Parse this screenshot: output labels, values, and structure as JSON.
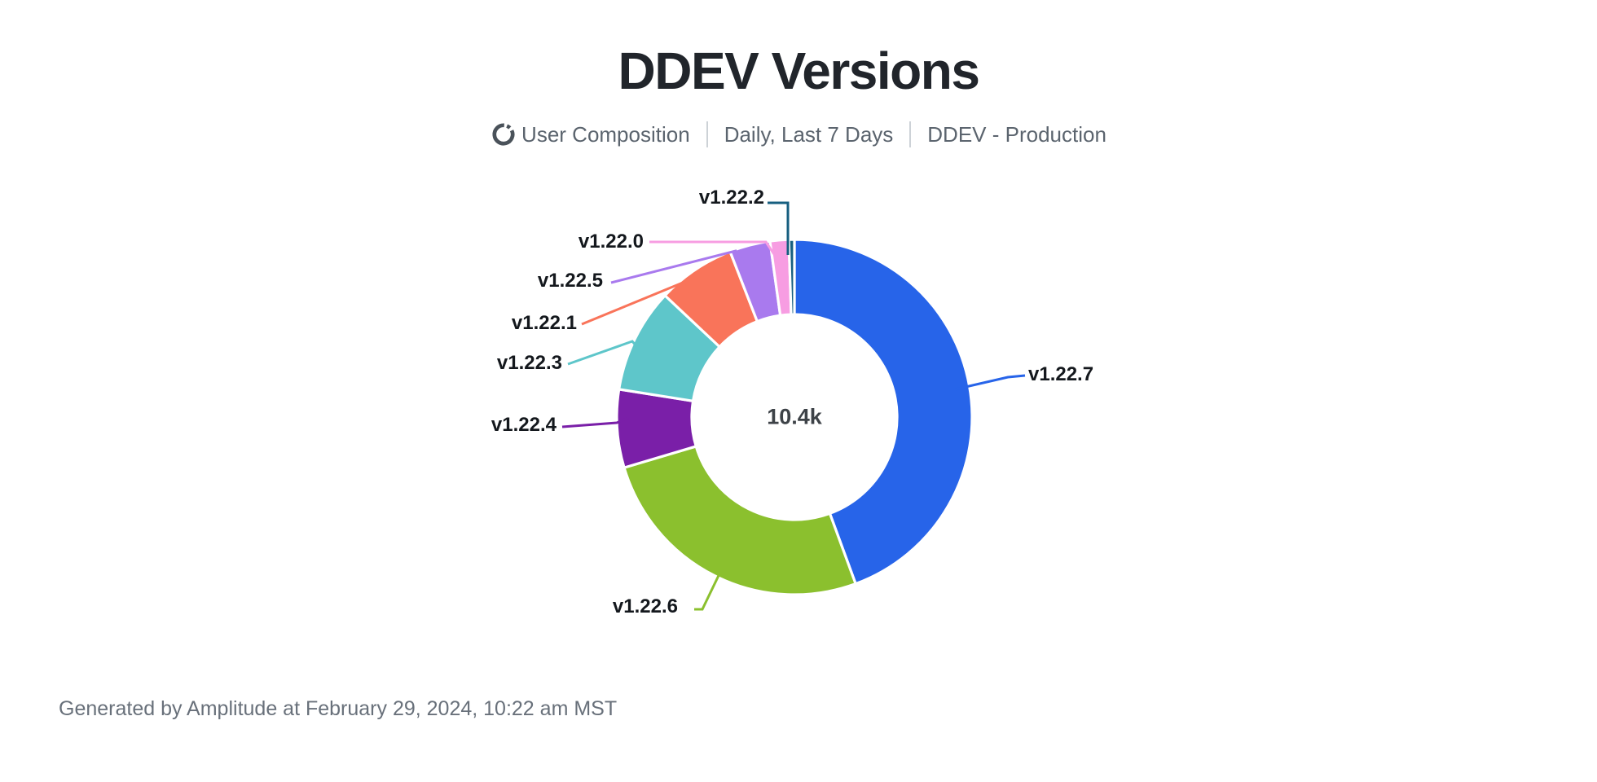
{
  "header": {
    "title": "DDEV Versions"
  },
  "subtitle": {
    "chart_type_label": "User Composition",
    "date_range": "Daily, Last 7 Days",
    "project": "DDEV - Production"
  },
  "footer": {
    "text": "Generated by Amplitude at February 29, 2024, 10:22 am MST"
  },
  "chart_data": {
    "type": "pie",
    "subtype": "donut",
    "title": "DDEV Versions",
    "center_label": "10.4k",
    "total_users_approx": 10400,
    "legend_position": "callout-labels",
    "start_angle_deg": 0,
    "direction": "clockwise",
    "slices": [
      {
        "label": "v1.22.7",
        "percent": 44.4,
        "color": "#2764E9"
      },
      {
        "label": "v1.22.6",
        "percent": 26.0,
        "color": "#8BC02E"
      },
      {
        "label": "v1.22.4",
        "percent": 7.1,
        "color": "#7A1FA8"
      },
      {
        "label": "v1.22.3",
        "percent": 9.5,
        "color": "#5EC6CA"
      },
      {
        "label": "v1.22.1",
        "percent": 7.1,
        "color": "#F9745A"
      },
      {
        "label": "v1.22.5",
        "percent": 3.7,
        "color": "#A97AEE"
      },
      {
        "label": "v1.22.0",
        "percent": 1.7,
        "color": "#F79DE2"
      },
      {
        "label": "v1.22.2",
        "percent": 0.5,
        "color": "#175F80"
      }
    ]
  }
}
